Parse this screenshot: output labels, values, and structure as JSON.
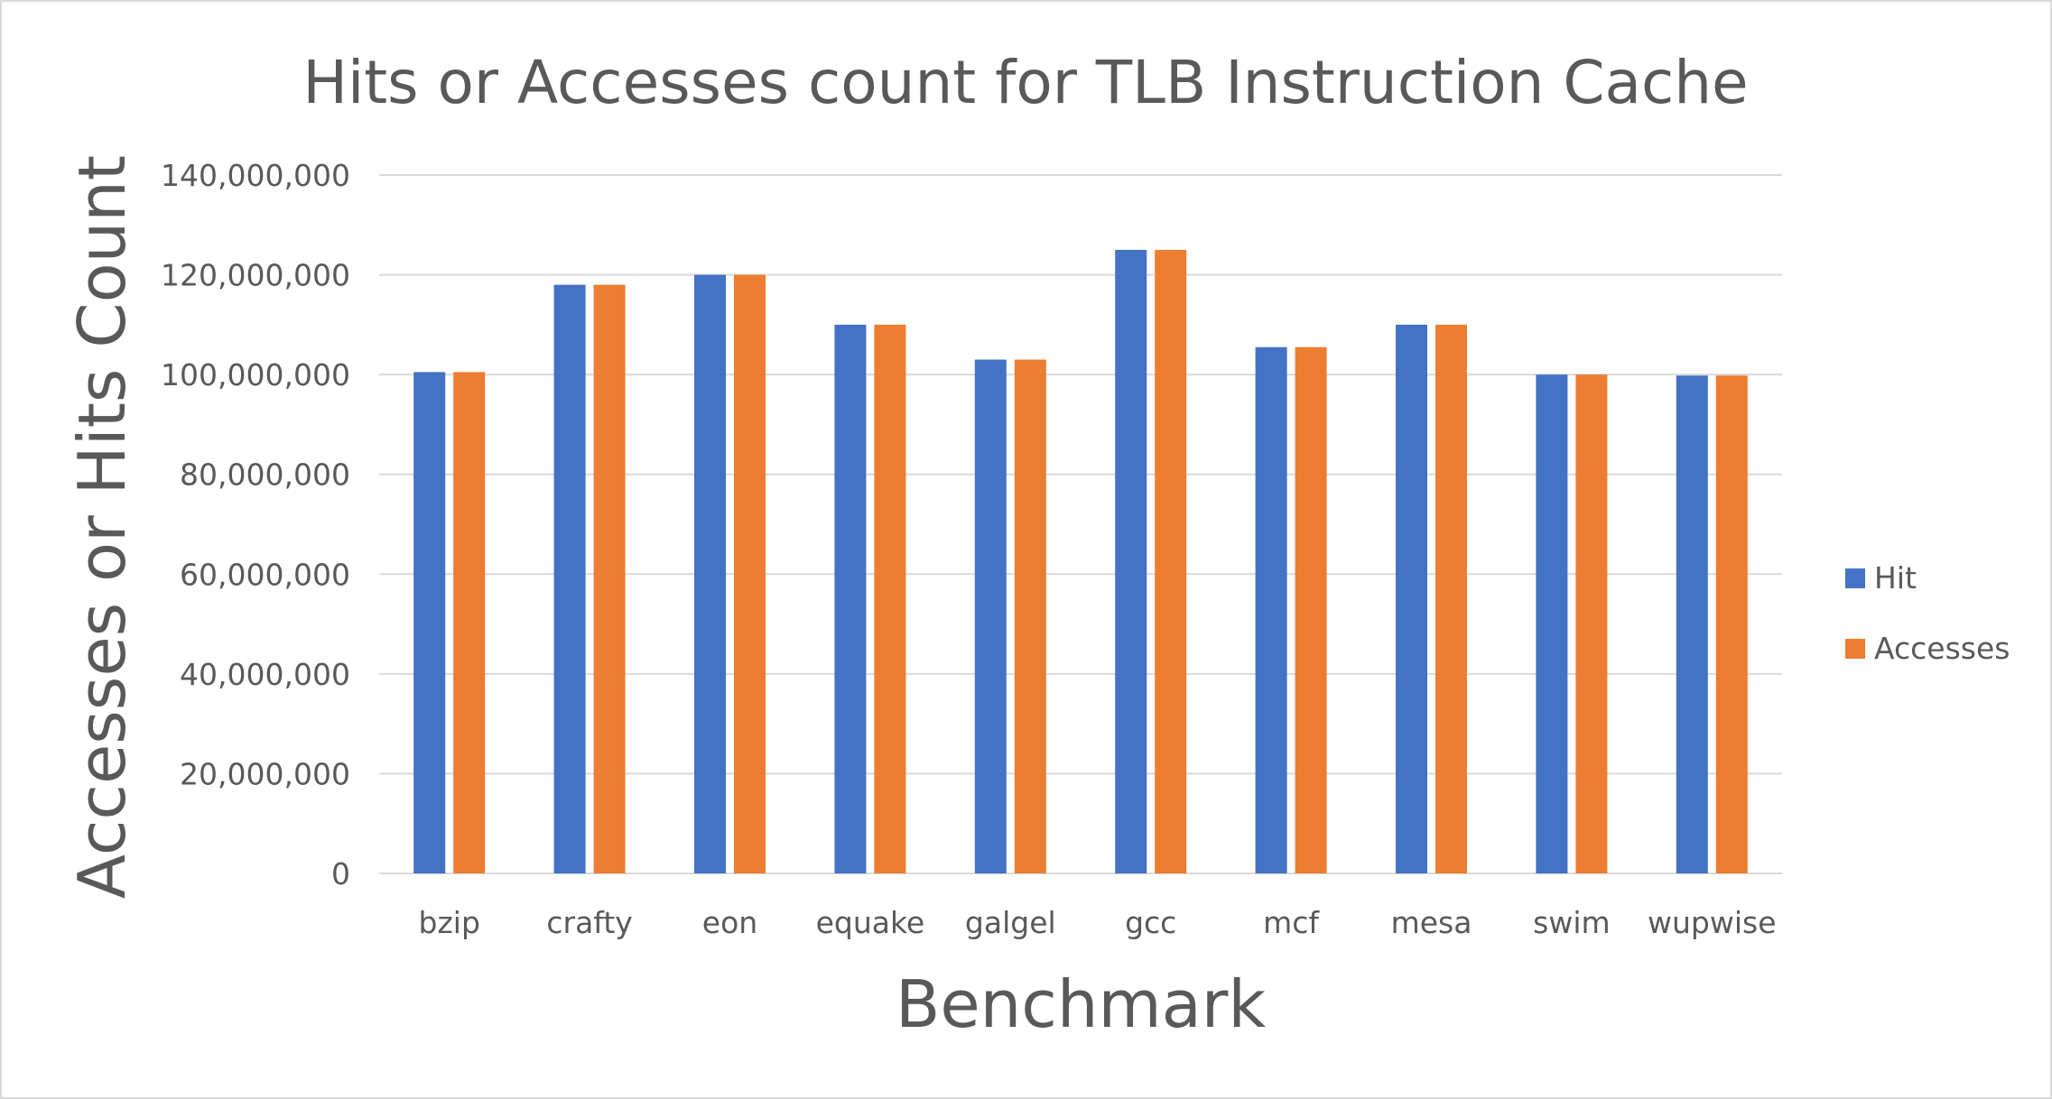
{
  "chart_data": {
    "type": "bar",
    "title": "Hits or Accesses count for TLB Instruction Cache",
    "xlabel": "Benchmark",
    "ylabel": "Accesses or Hits Count",
    "categories": [
      "bzip",
      "crafty",
      "eon",
      "equake",
      "galgel",
      "gcc",
      "mcf",
      "mesa",
      "swim",
      "wupwise"
    ],
    "series": [
      {
        "name": "Hit",
        "color": "#4472c4",
        "values": [
          100500000,
          118000000,
          120000000,
          110000000,
          103000000,
          125000000,
          105500000,
          110000000,
          100000000,
          99800000
        ]
      },
      {
        "name": "Accesses",
        "color": "#ed7d31",
        "values": [
          100500000,
          118000000,
          120000000,
          110000000,
          103000000,
          125000000,
          105500000,
          110000000,
          100000000,
          99800000
        ]
      }
    ],
    "ylim": [
      0,
      140000000
    ],
    "yticks": [
      0,
      20000000,
      40000000,
      60000000,
      80000000,
      100000000,
      120000000,
      140000000
    ],
    "ytick_labels": [
      "0",
      "20,000,000",
      "40,000,000",
      "60,000,000",
      "80,000,000",
      "100,000,000",
      "120,000,000",
      "140,000,000"
    ],
    "grid": true,
    "legend_position": "right"
  }
}
